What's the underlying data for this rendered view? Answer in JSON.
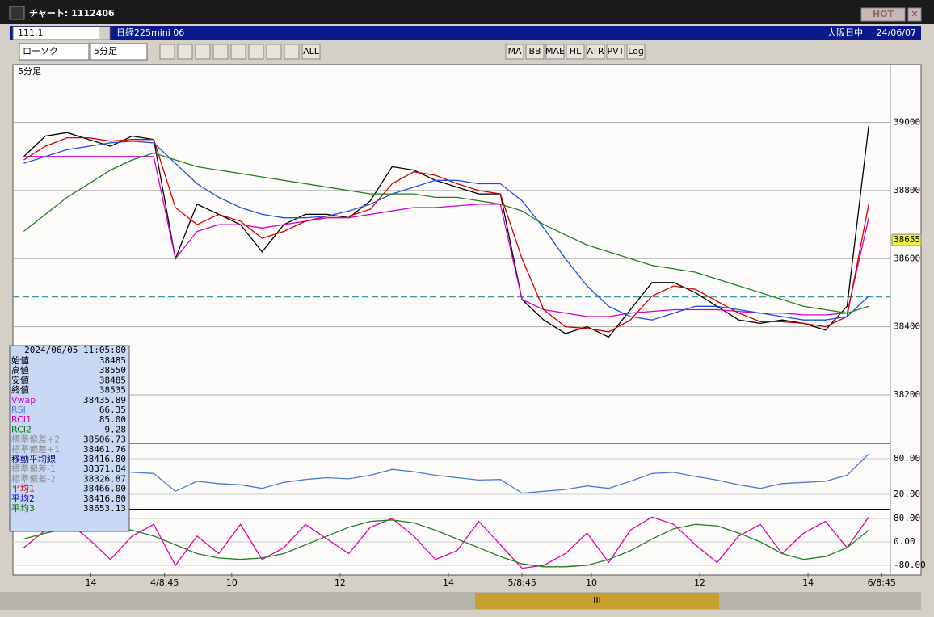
{
  "window": {
    "title": "チャート: 1112406",
    "hot": "HOT"
  },
  "header": {
    "code": "111.1",
    "name": "日経225mini 06",
    "session": "大阪日中",
    "date": "24/06/07"
  },
  "toolbar": {
    "chart_kind": "ローソク",
    "period": "5分足",
    "buttons": [
      "ALL",
      "MA",
      "BB",
      "MAE",
      "HL",
      "ATR",
      "PVT",
      "Log"
    ]
  },
  "info": {
    "datetime": "2024/06/05 11:05:00",
    "rows": [
      [
        "始値",
        "38485",
        "#000000"
      ],
      [
        "高値",
        "38550",
        "#000000"
      ],
      [
        "安値",
        "38485",
        "#000000"
      ],
      [
        "終値",
        "38535",
        "#000000"
      ],
      [
        "Vwap",
        "38435.89",
        "#d000d0"
      ],
      [
        "RSI",
        "66.35",
        "#5a7fd0"
      ],
      [
        "RCI1",
        "85.00",
        "#d000a0"
      ],
      [
        "RCI2",
        "9.28",
        "#007000"
      ],
      [
        "標準偏差+2",
        "38506.73",
        "#909090"
      ],
      [
        "標準偏差+1",
        "38461.76",
        "#909090"
      ],
      [
        "移動平均線",
        "38416.80",
        "#000080"
      ],
      [
        "標準偏差-1",
        "38371.84",
        "#909090"
      ],
      [
        "標準偏差-2",
        "38326.87",
        "#909090"
      ],
      [
        "平均1",
        "38466.00",
        "#d00000"
      ],
      [
        "平均2",
        "38416.80",
        "#0000d0"
      ],
      [
        "平均3",
        "38653.13",
        "#007000"
      ]
    ]
  },
  "chart_data": [
    {
      "type": "line",
      "title": "5分足",
      "current_price": 38655,
      "dashed_level": 38488,
      "x": [
        0,
        1,
        2,
        3,
        4,
        5,
        6,
        7,
        8,
        9,
        10,
        11,
        12,
        13,
        14,
        15,
        16,
        17,
        18,
        19,
        20,
        21,
        22,
        23,
        24,
        25,
        26,
        27,
        28,
        29,
        30,
        31,
        32,
        33,
        34,
        35,
        36,
        37,
        38,
        39
      ],
      "xlim": [
        -0.5,
        40
      ],
      "ylim": [
        38060,
        39165
      ],
      "yticks": [
        38200,
        38400,
        38600,
        38800,
        39000
      ],
      "xticks": [
        {
          "value": 3.1,
          "label": "14"
        },
        {
          "value": 6.5,
          "label": "4/8:45"
        },
        {
          "value": 9.6,
          "label": "10"
        },
        {
          "value": 14.6,
          "label": "12"
        },
        {
          "value": 19.6,
          "label": "14"
        },
        {
          "value": 23,
          "label": "5/8:45"
        },
        {
          "value": 26.2,
          "label": "10"
        },
        {
          "value": 31.2,
          "label": "12"
        },
        {
          "value": 36.2,
          "label": "14"
        },
        {
          "value": 39.6,
          "label": "6/8:45"
        }
      ],
      "series": [
        {
          "name": "終値",
          "color": "#000000",
          "values": [
            38900,
            38960,
            38970,
            38950,
            38930,
            38960,
            38950,
            38600,
            38760,
            38730,
            38700,
            38620,
            38700,
            38730,
            38730,
            38720,
            38770,
            38870,
            38860,
            38830,
            38810,
            38790,
            38790,
            38480,
            38420,
            38380,
            38400,
            38370,
            38450,
            38530,
            38530,
            38500,
            38460,
            38420,
            38410,
            38420,
            38410,
            38390,
            38460,
            38990
          ]
        },
        {
          "name": "Vwap",
          "color": "#d000d0",
          "values": [
            38900,
            38900,
            38900,
            38900,
            38900,
            38900,
            38900,
            38600,
            38680,
            38700,
            38700,
            38690,
            38700,
            38710,
            38720,
            38720,
            38730,
            38740,
            38750,
            38750,
            38755,
            38760,
            38760,
            38480,
            38450,
            38440,
            38430,
            38430,
            38440,
            38445,
            38450,
            38450,
            38450,
            38445,
            38440,
            38440,
            38435,
            38435,
            38440,
            38720
          ]
        },
        {
          "name": "平均1",
          "color": "#d00000",
          "values": [
            38890,
            38930,
            38955,
            38955,
            38945,
            38950,
            38950,
            38750,
            38700,
            38730,
            38710,
            38660,
            38680,
            38710,
            38725,
            38725,
            38745,
            38820,
            38855,
            38845,
            38820,
            38800,
            38790,
            38600,
            38450,
            38400,
            38395,
            38385,
            38420,
            38490,
            38520,
            38510,
            38475,
            38440,
            38415,
            38415,
            38410,
            38400,
            38430,
            38760
          ]
        },
        {
          "name": "平均2",
          "color": "#2050e0",
          "values": [
            38880,
            38900,
            38920,
            38930,
            38940,
            38945,
            38940,
            38880,
            38820,
            38780,
            38750,
            38730,
            38720,
            38720,
            38725,
            38740,
            38760,
            38790,
            38810,
            38830,
            38830,
            38820,
            38820,
            38770,
            38690,
            38600,
            38520,
            38460,
            38430,
            38420,
            38440,
            38460,
            38460,
            38450,
            38440,
            38430,
            38420,
            38420,
            38430,
            38490
          ]
        },
        {
          "name": "平均3",
          "color": "#208020",
          "values": [
            38680,
            38730,
            38780,
            38820,
            38860,
            38890,
            38910,
            38890,
            38870,
            38860,
            38850,
            38840,
            38830,
            38820,
            38810,
            38800,
            38790,
            38790,
            38790,
            38780,
            38780,
            38770,
            38760,
            38740,
            38700,
            38670,
            38640,
            38620,
            38600,
            38580,
            38570,
            38560,
            38540,
            38520,
            38500,
            38480,
            38460,
            38450,
            38440,
            38460
          ]
        }
      ]
    },
    {
      "type": "line",
      "x": [
        0,
        1,
        2,
        3,
        4,
        5,
        6,
        7,
        8,
        9,
        10,
        11,
        12,
        13,
        14,
        15,
        16,
        17,
        18,
        19,
        20,
        21,
        22,
        23,
        24,
        25,
        26,
        27,
        28,
        29,
        30,
        31,
        32,
        33,
        34,
        35,
        36,
        37,
        38,
        39
      ],
      "xlim": [
        -0.5,
        40
      ],
      "ylim": [
        -4.5,
        104.5
      ],
      "yticks": [
        {
          "value": 80,
          "label": "80.00"
        },
        {
          "value": 20,
          "label": "20.00"
        }
      ],
      "series": [
        {
          "name": "RSI",
          "color": "#4a7ad8",
          "values": [
            55,
            60,
            58,
            52,
            62,
            57,
            55,
            25,
            42,
            38,
            36,
            30,
            40,
            45,
            48,
            46,
            52,
            62,
            58,
            52,
            48,
            44,
            45,
            22,
            25,
            28,
            34,
            30,
            42,
            55,
            57,
            50,
            44,
            36,
            30,
            38,
            40,
            42,
            52,
            88
          ]
        }
      ]
    },
    {
      "type": "line",
      "x": [
        0,
        1,
        2,
        3,
        4,
        5,
        6,
        7,
        8,
        9,
        10,
        11,
        12,
        13,
        14,
        15,
        16,
        17,
        18,
        19,
        20,
        21,
        22,
        23,
        24,
        25,
        26,
        27,
        28,
        29,
        30,
        31,
        32,
        33,
        34,
        35,
        36,
        37,
        38,
        39
      ],
      "xlim": [
        -0.5,
        40
      ],
      "ylim": [
        -107.6,
        107.6
      ],
      "yticks": [
        {
          "value": 80,
          "label": "80.00"
        },
        {
          "value": 0,
          "label": "0.00"
        },
        {
          "value": -80,
          "label": "-80.00"
        }
      ],
      "series": [
        {
          "name": "RCI1",
          "color": "#e000a0",
          "values": [
            -20,
            40,
            70,
            10,
            -60,
            20,
            60,
            -80,
            20,
            -40,
            60,
            -60,
            -20,
            60,
            10,
            -40,
            50,
            80,
            20,
            -60,
            -30,
            70,
            -10,
            -90,
            -80,
            -40,
            30,
            -70,
            40,
            85,
            60,
            -10,
            -70,
            20,
            60,
            -40,
            30,
            70,
            -20,
            85
          ]
        },
        {
          "name": "RCI2",
          "color": "#208020",
          "values": [
            10,
            30,
            45,
            55,
            50,
            40,
            20,
            -10,
            -40,
            -55,
            -60,
            -55,
            -40,
            -10,
            20,
            50,
            70,
            75,
            65,
            40,
            10,
            -20,
            -50,
            -75,
            -85,
            -85,
            -80,
            -60,
            -30,
            10,
            45,
            60,
            55,
            30,
            0,
            -40,
            -60,
            -50,
            -20,
            40
          ]
        }
      ]
    }
  ]
}
